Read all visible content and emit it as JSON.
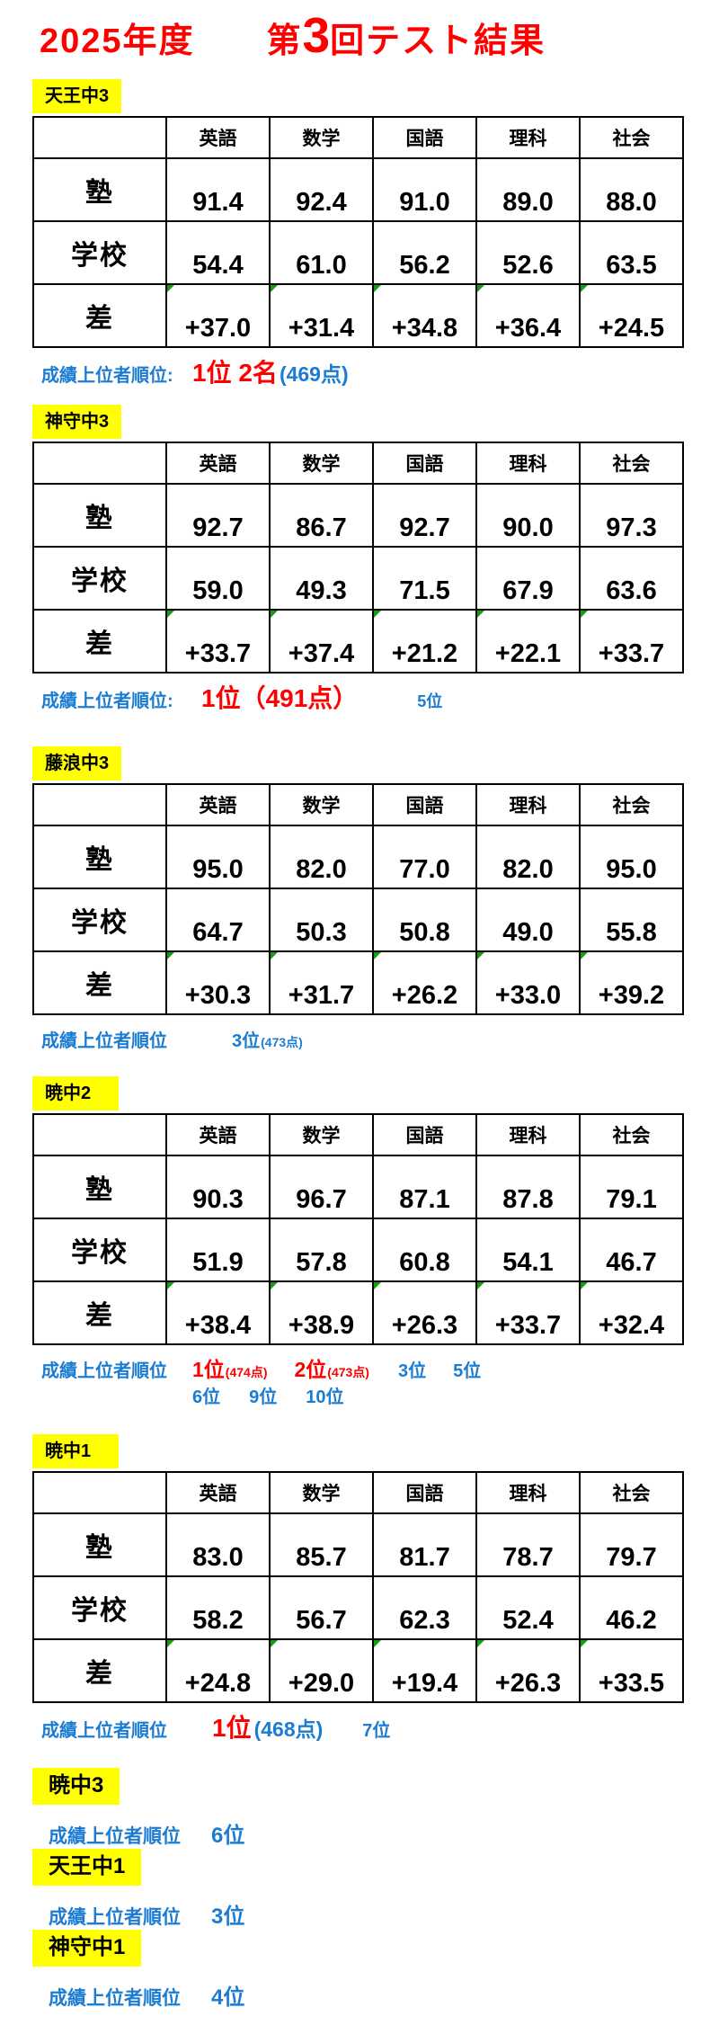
{
  "title": {
    "part1": "2025年度　　第",
    "big_digit": "3",
    "part2": "回テスト結果"
  },
  "columns": [
    "英語",
    "数学",
    "国語",
    "理科",
    "社会"
  ],
  "sections": [
    {
      "name": "天王中3",
      "rows": [
        {
          "label": "塾",
          "values": [
            "91.4",
            "92.4",
            "91.0",
            "89.0",
            "88.0"
          ],
          "markers": false
        },
        {
          "label": "学校",
          "values": [
            "54.4",
            "61.0",
            "56.2",
            "52.6",
            "63.5"
          ],
          "markers": false
        },
        {
          "label": "差",
          "values": [
            "+37.0",
            "+31.4",
            "+34.8",
            "+36.4",
            "+24.5"
          ],
          "markers": true
        }
      ],
      "ranking": {
        "label": "成績上位者順位:",
        "lines": [
          [
            {
              "text": "1位 2名",
              "color": "red",
              "size": "xl",
              "gap": 0
            },
            {
              "text": "(469点)",
              "color": "blue",
              "size": "lg",
              "gap": 2
            }
          ]
        ]
      }
    },
    {
      "name": "神守中3",
      "rows": [
        {
          "label": "塾",
          "values": [
            "92.7",
            "86.7",
            "92.7",
            "90.0",
            "97.3"
          ],
          "markers": false
        },
        {
          "label": "学校",
          "values": [
            "59.0",
            "49.3",
            "71.5",
            "67.9",
            "63.6"
          ],
          "markers": false
        },
        {
          "label": "差",
          "values": [
            "+33.7",
            "+37.4",
            "+21.2",
            "+22.1",
            "+33.7"
          ],
          "markers": true
        }
      ],
      "ranking": {
        "label": "成績上位者順位:",
        "lines": [
          [
            {
              "text": "1位（491点）",
              "color": "red",
              "size": "xl",
              "gap": 10
            },
            {
              "text": "5位",
              "color": "blue",
              "size": "sm",
              "gap": 66
            }
          ]
        ]
      }
    },
    {
      "name": "藤浪中3",
      "rows": [
        {
          "label": "塾",
          "values": [
            "95.0",
            "82.0",
            "77.0",
            "82.0",
            "95.0"
          ],
          "markers": false
        },
        {
          "label": "学校",
          "values": [
            "64.7",
            "50.3",
            "50.8",
            "49.0",
            "55.8"
          ],
          "markers": false
        },
        {
          "label": "差",
          "values": [
            "+30.3",
            "+31.7",
            "+26.2",
            "+33.0",
            "+39.2"
          ],
          "markers": true
        }
      ],
      "ranking": {
        "label": "成績上位者順位",
        "lines": [
          [
            {
              "text": "3位",
              "color": "blue",
              "size": "md",
              "gap": 44
            },
            {
              "text": "(473点)",
              "color": "blue",
              "size": "xs",
              "gap": 1
            }
          ]
        ]
      }
    },
    {
      "name": "暁中2",
      "rows": [
        {
          "label": "塾",
          "values": [
            "90.3",
            "96.7",
            "87.1",
            "87.8",
            "79.1"
          ],
          "markers": false
        },
        {
          "label": "学校",
          "values": [
            "51.9",
            "57.8",
            "60.8",
            "54.1",
            "46.7"
          ],
          "markers": false
        },
        {
          "label": "差",
          "values": [
            "+38.4",
            "+38.9",
            "+26.3",
            "+33.7",
            "+32.4"
          ],
          "markers": true
        }
      ],
      "ranking": {
        "label": "成績上位者順位",
        "lines": [
          [
            {
              "text": "1位",
              "color": "red",
              "size": "lg",
              "gap": 0
            },
            {
              "text": "(474点)",
              "color": "red",
              "size": "xs",
              "gap": 1
            },
            {
              "text": "2位",
              "color": "red",
              "size": "lg",
              "gap": 30
            },
            {
              "text": "(473点)",
              "color": "red",
              "size": "xs",
              "gap": 1
            },
            {
              "text": "3位",
              "color": "blue",
              "size": "md",
              "gap": 32
            },
            {
              "text": "5位",
              "color": "blue",
              "size": "md",
              "gap": 30
            }
          ],
          [
            {
              "text": "6位",
              "color": "blue",
              "size": "md",
              "gap": 0
            },
            {
              "text": "9位",
              "color": "blue",
              "size": "md",
              "gap": 32
            },
            {
              "text": "10位",
              "color": "blue",
              "size": "md",
              "gap": 32
            }
          ]
        ]
      }
    },
    {
      "name": "暁中1",
      "rows": [
        {
          "label": "塾",
          "values": [
            "83.0",
            "85.7",
            "81.7",
            "78.7",
            "79.7"
          ],
          "markers": false
        },
        {
          "label": "学校",
          "values": [
            "58.2",
            "56.7",
            "62.3",
            "52.4",
            "46.2"
          ],
          "markers": false
        },
        {
          "label": "差",
          "values": [
            "+24.8",
            "+29.0",
            "+19.4",
            "+26.3",
            "+33.5"
          ],
          "markers": true
        }
      ],
      "ranking": {
        "label": "成績上位者順位",
        "lines": [
          [
            {
              "text": "1位",
              "color": "red",
              "size": "xl",
              "gap": 22
            },
            {
              "text": "(468点)",
              "color": "blue",
              "size": "lg",
              "gap": 3
            },
            {
              "text": "7位",
              "color": "blue",
              "size": "md",
              "gap": 44
            }
          ]
        ]
      }
    }
  ],
  "mini_sections": [
    {
      "name": "暁中3",
      "ranking_label": "成績上位者順位",
      "rank": "6位"
    },
    {
      "name": "天王中1",
      "ranking_label": "成績上位者順位",
      "rank": "3位"
    },
    {
      "name": "神守中1",
      "ranking_label": "成績上位者順位",
      "rank": "4位"
    }
  ],
  "colors": {
    "accent_red": "#FF0000",
    "accent_blue": "#1B7CD2",
    "highlight_yellow": "#FFFF00",
    "marker_green": "#12A012"
  }
}
